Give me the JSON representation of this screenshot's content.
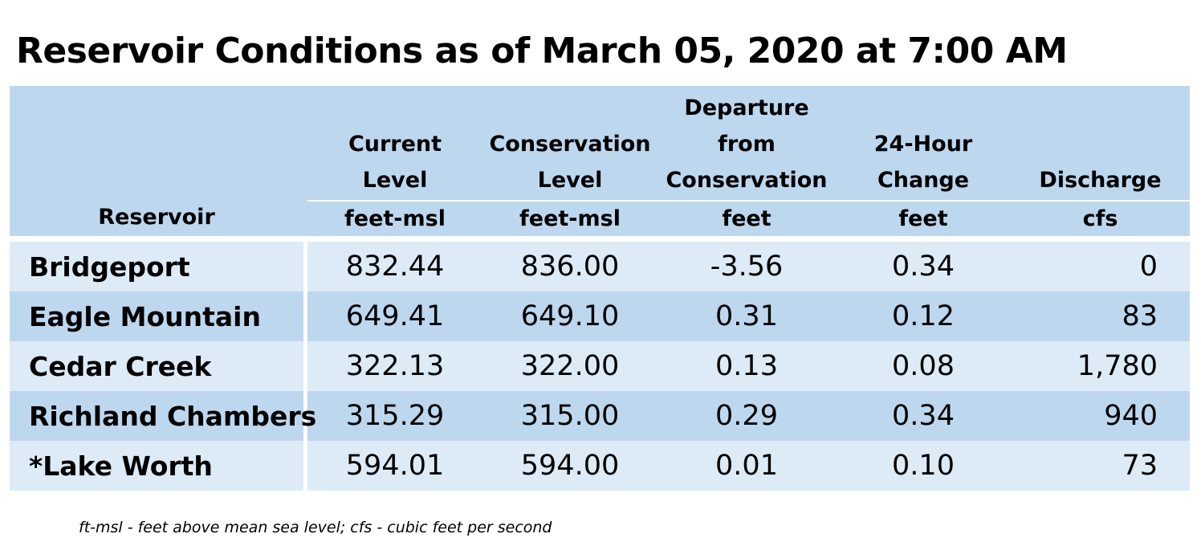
{
  "title": "Reservoir Conditions as of March 05, 2020 at 7:00 AM",
  "colors": {
    "header_bg": "#bdd7ee",
    "row_light": "#ddebf7",
    "row_dark": "#bdd7ee"
  },
  "table": {
    "columns": [
      {
        "label_lines": [
          "Reservoir"
        ],
        "unit": ""
      },
      {
        "label_lines": [
          "Current",
          "Level"
        ],
        "unit": "feet-msl"
      },
      {
        "label_lines": [
          "Conservation",
          "Level"
        ],
        "unit": "feet-msl"
      },
      {
        "label_lines": [
          "Departure",
          "from",
          "Conservation"
        ],
        "unit": "feet"
      },
      {
        "label_lines": [
          "24-Hour",
          "Change"
        ],
        "unit": "feet"
      },
      {
        "label_lines": [
          "Discharge"
        ],
        "unit": "cfs"
      }
    ],
    "rows": [
      {
        "reservoir": "Bridgeport",
        "current_level": "832.44",
        "conservation_level": "836.00",
        "departure": "-3.56",
        "change_24h": "0.34",
        "discharge": "0"
      },
      {
        "reservoir": "Eagle Mountain",
        "current_level": "649.41",
        "conservation_level": "649.10",
        "departure": "0.31",
        "change_24h": "0.12",
        "discharge": "83"
      },
      {
        "reservoir": "Cedar Creek",
        "current_level": "322.13",
        "conservation_level": "322.00",
        "departure": "0.13",
        "change_24h": "0.08",
        "discharge": "1,780"
      },
      {
        "reservoir": "Richland Chambers",
        "current_level": "315.29",
        "conservation_level": "315.00",
        "departure": "0.29",
        "change_24h": "0.34",
        "discharge": "940"
      },
      {
        "reservoir": "*Lake Worth",
        "current_level": "594.01",
        "conservation_level": "594.00",
        "departure": "0.01",
        "change_24h": "0.10",
        "discharge": "73"
      }
    ]
  },
  "footnote": "ft-msl - feet above mean sea level; cfs - cubic feet per second"
}
